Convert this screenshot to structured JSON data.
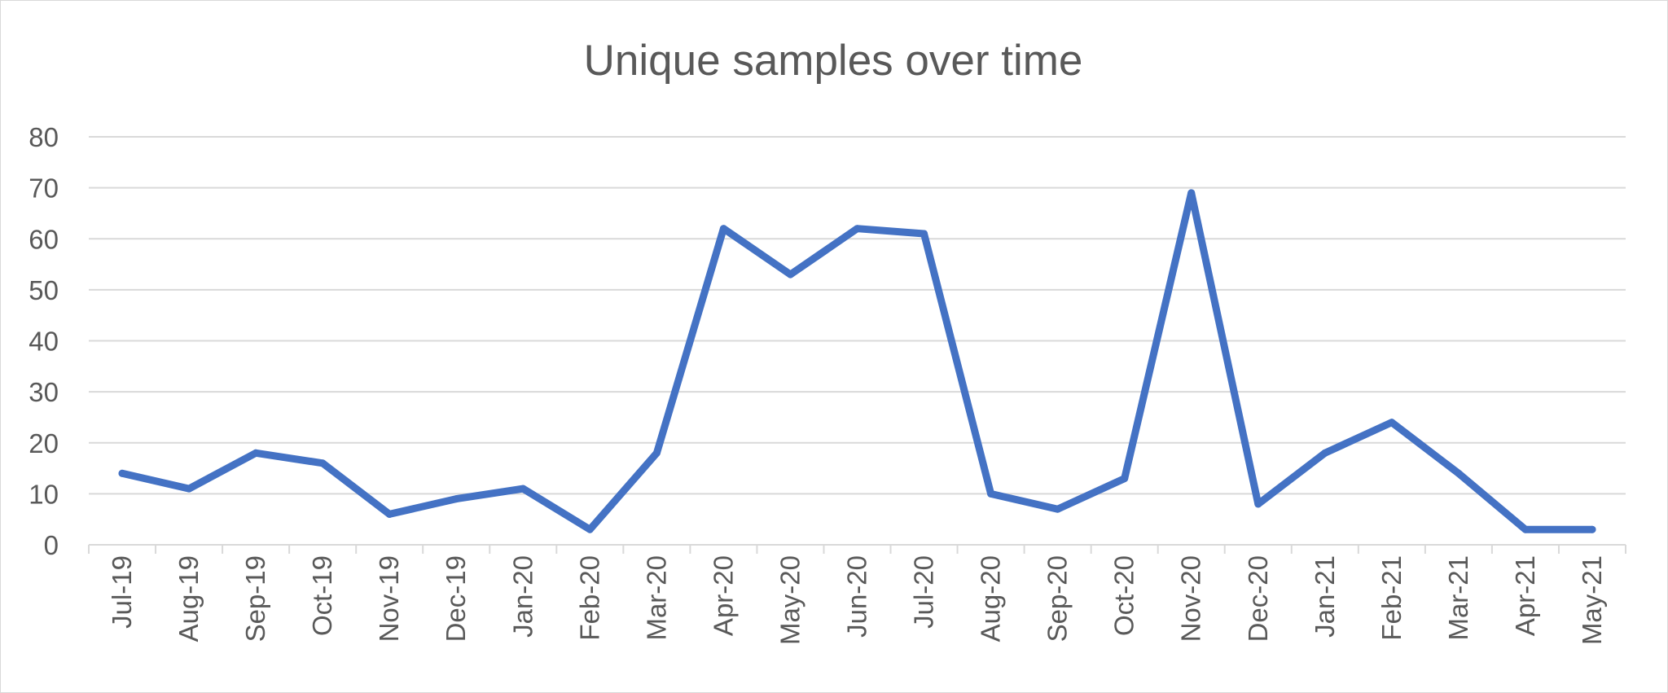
{
  "chart_data": {
    "type": "line",
    "title": "Unique samples over time",
    "xlabel": "",
    "ylabel": "",
    "ylim": [
      0,
      80
    ],
    "yticks": [
      "0",
      "10",
      "20",
      "30",
      "40",
      "50",
      "60",
      "70",
      "80"
    ],
    "grid": "horizontal",
    "legend": "none",
    "categories": [
      "Jul-19",
      "Aug-19",
      "Sep-19",
      "Oct-19",
      "Nov-19",
      "Dec-19",
      "Jan-20",
      "Feb-20",
      "Mar-20",
      "Apr-20",
      "May-20",
      "Jun-20",
      "Jul-20",
      "Aug-20",
      "Sep-20",
      "Oct-20",
      "Nov-20",
      "Dec-20",
      "Jan-21",
      "Feb-21",
      "Mar-21",
      "Apr-21",
      "May-21"
    ],
    "series": [
      {
        "values": [
          14,
          11,
          18,
          16,
          6,
          9,
          11,
          3,
          18,
          62,
          53,
          62,
          61,
          10,
          7,
          13,
          69,
          8,
          18,
          24,
          14,
          3,
          3
        ]
      }
    ],
    "colors": {
      "line": "#4472C4",
      "grid": "#d9d9d9",
      "text": "#595959"
    }
  }
}
